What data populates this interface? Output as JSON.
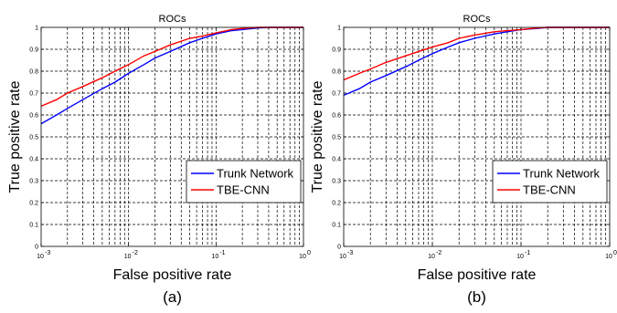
{
  "chart_data": [
    {
      "type": "line",
      "title": "ROCs",
      "xlabel": "False positive rate",
      "ylabel": "True positive rate",
      "caption": "(a)",
      "xscale": "log",
      "xlim": [
        0.001,
        1
      ],
      "ylim": [
        0,
        1
      ],
      "xticks": [
        0.001,
        0.01,
        0.1,
        1
      ],
      "xtick_labels": [
        {
          "base": "10",
          "exp": "-3"
        },
        {
          "base": "10",
          "exp": "-2"
        },
        {
          "base": "10",
          "exp": "-1"
        },
        {
          "base": "10",
          "exp": "0"
        }
      ],
      "yticks": [
        0,
        0.1,
        0.2,
        0.3,
        0.4,
        0.5,
        0.6,
        0.7,
        0.8,
        0.9,
        1
      ],
      "ytick_labels": [
        "0",
        "0.1",
        "0.2",
        "0.3",
        "0.4",
        "0.5",
        "0.6",
        "0.7",
        "0.8",
        "0.9",
        "1"
      ],
      "grid": true,
      "legend_position": "lower-right",
      "series": [
        {
          "name": "Trunk Network",
          "color": "#0000ff",
          "x": [
            0.001,
            0.0015,
            0.002,
            0.003,
            0.005,
            0.007,
            0.01,
            0.015,
            0.02,
            0.03,
            0.05,
            0.07,
            0.1,
            0.15,
            0.2,
            0.3,
            0.4,
            0.6,
            1
          ],
          "y": [
            0.56,
            0.6,
            0.63,
            0.67,
            0.72,
            0.75,
            0.79,
            0.83,
            0.86,
            0.89,
            0.93,
            0.95,
            0.97,
            0.985,
            0.99,
            0.997,
            1.0,
            1.0,
            1.0
          ]
        },
        {
          "name": "TBE-CNN",
          "color": "#ff0000",
          "x": [
            0.001,
            0.0015,
            0.002,
            0.003,
            0.005,
            0.007,
            0.01,
            0.015,
            0.02,
            0.03,
            0.05,
            0.07,
            0.1,
            0.15,
            0.2,
            0.3,
            0.4,
            0.6,
            1
          ],
          "y": [
            0.64,
            0.67,
            0.7,
            0.73,
            0.77,
            0.8,
            0.83,
            0.87,
            0.89,
            0.92,
            0.95,
            0.96,
            0.975,
            0.99,
            0.995,
            1.0,
            1.0,
            1.0,
            1.0
          ]
        }
      ]
    },
    {
      "type": "line",
      "title": "ROCs",
      "xlabel": "False positive rate",
      "ylabel": "True positive rate",
      "caption": "(b)",
      "xscale": "log",
      "xlim": [
        0.001,
        1
      ],
      "ylim": [
        0,
        1
      ],
      "xticks": [
        0.001,
        0.01,
        0.1,
        1
      ],
      "xtick_labels": [
        {
          "base": "10",
          "exp": "-3"
        },
        {
          "base": "10",
          "exp": "-2"
        },
        {
          "base": "10",
          "exp": "-1"
        },
        {
          "base": "10",
          "exp": "0"
        }
      ],
      "yticks": [
        0,
        0.1,
        0.2,
        0.3,
        0.4,
        0.5,
        0.6,
        0.7,
        0.8,
        0.9,
        1
      ],
      "ytick_labels": [
        "0",
        "0.1",
        "0.2",
        "0.3",
        "0.4",
        "0.5",
        "0.6",
        "0.7",
        "0.8",
        "0.9",
        "1"
      ],
      "grid": true,
      "legend_position": "lower-right",
      "series": [
        {
          "name": "Trunk Network",
          "color": "#0000ff",
          "x": [
            0.001,
            0.0015,
            0.002,
            0.003,
            0.005,
            0.007,
            0.01,
            0.015,
            0.02,
            0.03,
            0.05,
            0.07,
            0.1,
            0.15,
            0.2,
            0.3,
            0.5,
            1
          ],
          "y": [
            0.69,
            0.72,
            0.75,
            0.78,
            0.82,
            0.85,
            0.88,
            0.91,
            0.93,
            0.95,
            0.97,
            0.98,
            0.99,
            0.995,
            1.0,
            1.0,
            1.0,
            1.0
          ]
        },
        {
          "name": "TBE-CNN",
          "color": "#ff0000",
          "x": [
            0.001,
            0.0015,
            0.002,
            0.003,
            0.005,
            0.007,
            0.01,
            0.015,
            0.02,
            0.03,
            0.05,
            0.07,
            0.1,
            0.15,
            0.2,
            0.3,
            0.5,
            1
          ],
          "y": [
            0.76,
            0.79,
            0.81,
            0.84,
            0.87,
            0.89,
            0.91,
            0.93,
            0.95,
            0.965,
            0.98,
            0.985,
            0.99,
            0.997,
            1.0,
            1.0,
            1.0,
            1.0
          ]
        }
      ]
    }
  ]
}
